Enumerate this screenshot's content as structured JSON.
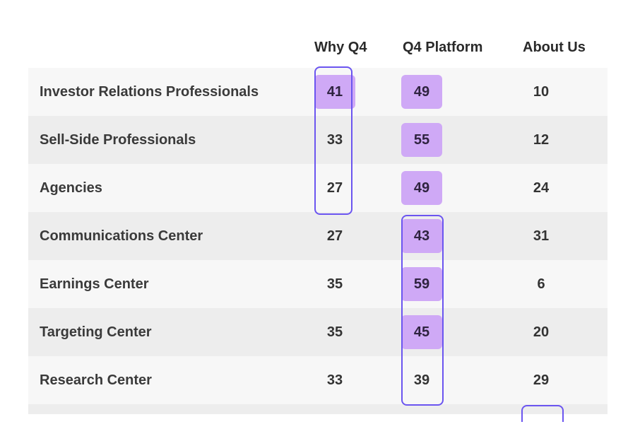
{
  "chart_data": {
    "type": "table",
    "columns": [
      "Why Q4",
      "Q4 Platform",
      "About Us"
    ],
    "rows": [
      {
        "label": "Investor Relations Professionals",
        "values": [
          41,
          49,
          10
        ],
        "highlight": [
          true,
          true,
          false
        ]
      },
      {
        "label": "Sell-Side Professionals",
        "values": [
          33,
          55,
          12
        ],
        "highlight": [
          false,
          true,
          false
        ]
      },
      {
        "label": "Agencies",
        "values": [
          27,
          49,
          24
        ],
        "highlight": [
          false,
          true,
          false
        ]
      },
      {
        "label": "Communications Center",
        "values": [
          27,
          43,
          31
        ],
        "highlight": [
          false,
          true,
          false
        ]
      },
      {
        "label": "Earnings Center",
        "values": [
          35,
          59,
          6
        ],
        "highlight": [
          false,
          true,
          false
        ]
      },
      {
        "label": "Targeting Center",
        "values": [
          35,
          45,
          20
        ],
        "highlight": [
          false,
          true,
          false
        ]
      },
      {
        "label": "Research Center",
        "values": [
          33,
          39,
          29
        ],
        "highlight": [
          false,
          false,
          false
        ]
      }
    ],
    "highlight_color": "#cfa9f6",
    "outline_color": "#6b55f0",
    "row_stripe_colors": [
      "#f7f7f7",
      "#ededed"
    ]
  }
}
